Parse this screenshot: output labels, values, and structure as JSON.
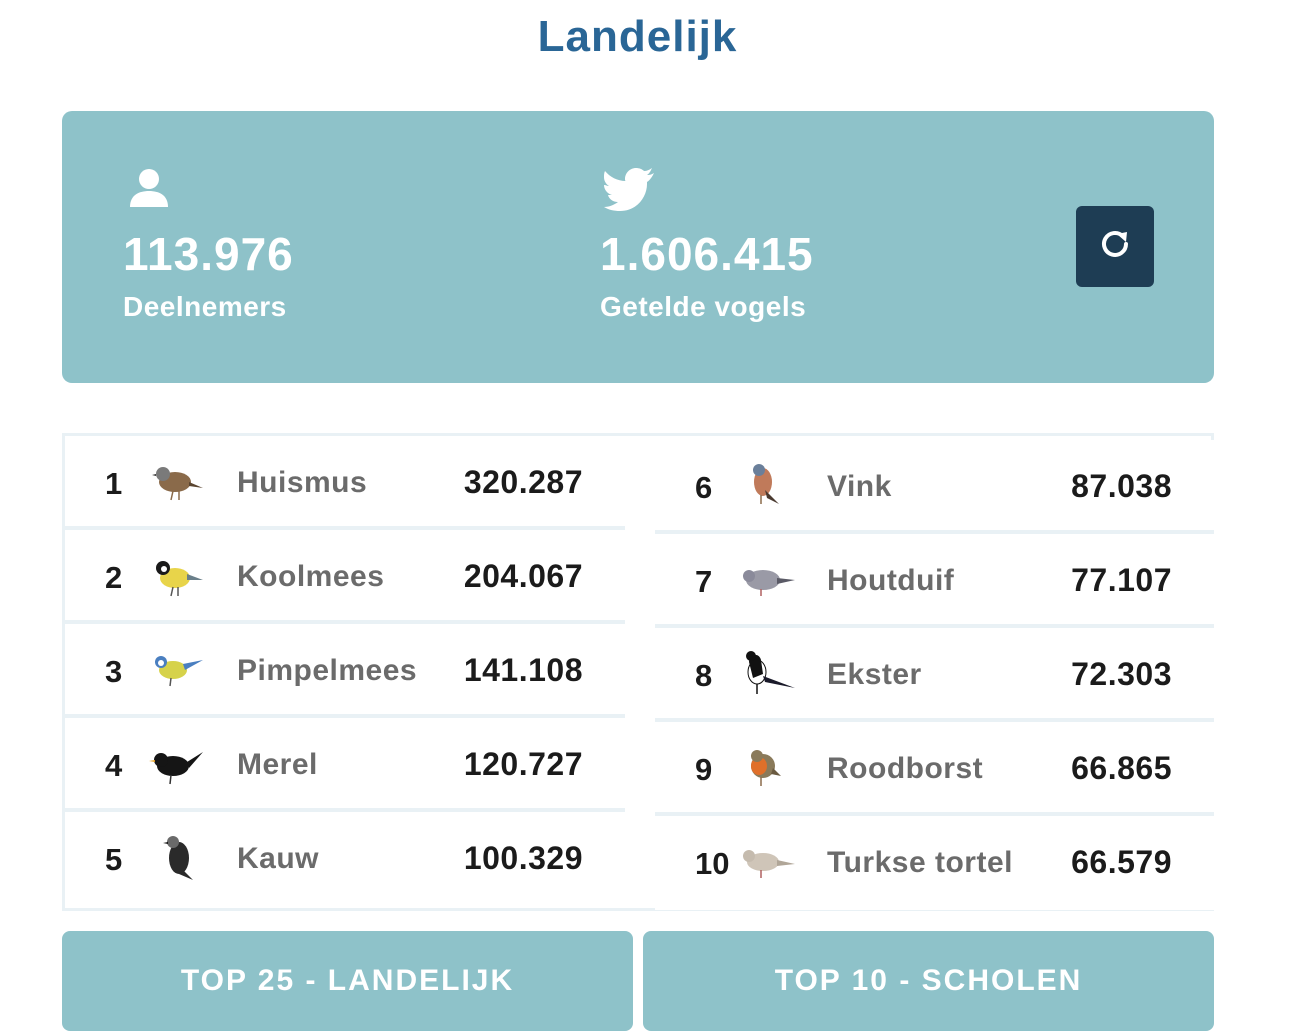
{
  "page": {
    "title": "Landelijk"
  },
  "stats": {
    "participants": {
      "value": "113.976",
      "label": "Deelnemers",
      "icon": "person-icon"
    },
    "birds": {
      "value": "1.606.415",
      "label": "Getelde vogels",
      "icon": "bird-icon"
    },
    "refresh_icon": "refresh-icon"
  },
  "top_list": {
    "left": [
      {
        "rank": "1",
        "name": "Huismus",
        "count": "320.287"
      },
      {
        "rank": "2",
        "name": "Koolmees",
        "count": "204.067"
      },
      {
        "rank": "3",
        "name": "Pimpelmees",
        "count": "141.108"
      },
      {
        "rank": "4",
        "name": "Merel",
        "count": "120.727"
      },
      {
        "rank": "5",
        "name": "Kauw",
        "count": "100.329"
      }
    ],
    "right": [
      {
        "rank": "6",
        "name": "Vink",
        "count": "87.038"
      },
      {
        "rank": "7",
        "name": "Houtduif",
        "count": "77.107"
      },
      {
        "rank": "8",
        "name": "Ekster",
        "count": "72.303"
      },
      {
        "rank": "9",
        "name": "Roodborst",
        "count": "66.865"
      },
      {
        "rank": "10",
        "name": "Turkse tortel",
        "count": "66.579"
      }
    ]
  },
  "buttons": {
    "national": "TOP 25 - LANDELIJK",
    "schools": "TOP 10 - SCHOLEN"
  },
  "colors": {
    "title": "#2a6696",
    "panel": "#8ec2c9",
    "refresh_button": "#1e3d54",
    "row_divider": "#e9f1f5"
  }
}
